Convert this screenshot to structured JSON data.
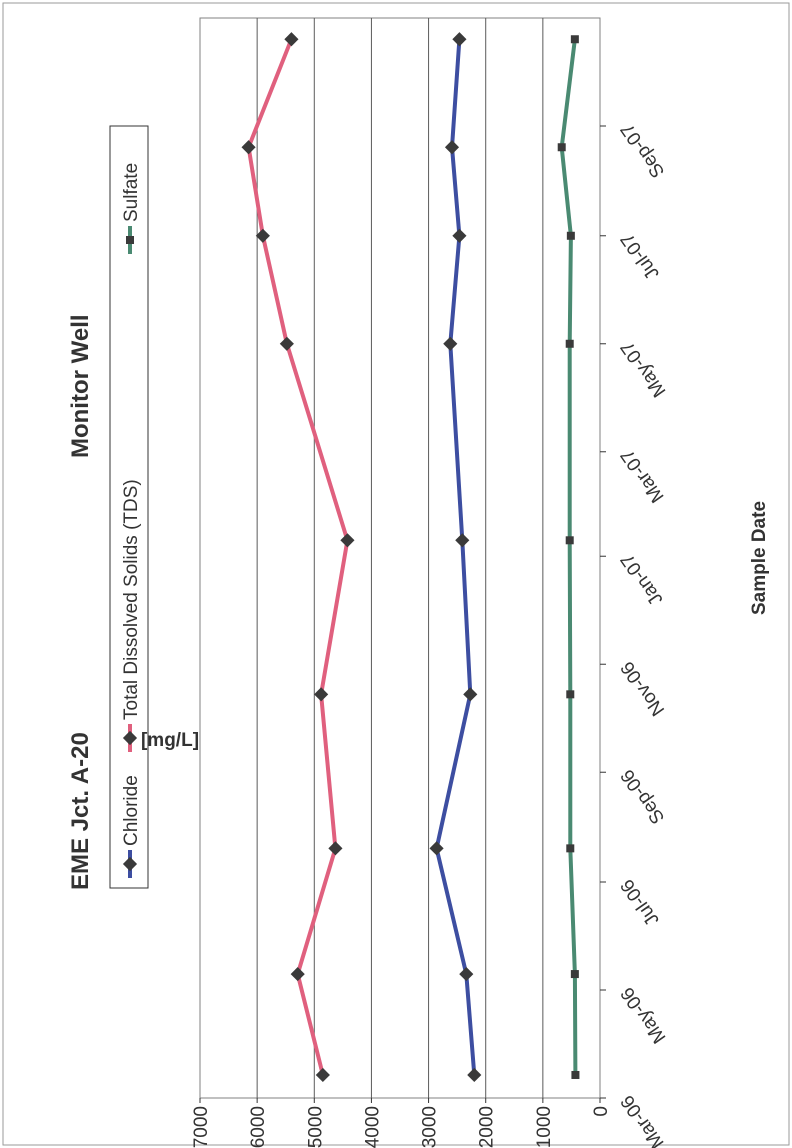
{
  "chart_data": {
    "type": "line",
    "title_left": "EME Jct. A-20",
    "title_right": "Monitor Well",
    "xlabel": "Sample Date",
    "ylabel": "[mg/L]",
    "x_ticks": [
      "Mar-06",
      "May-06",
      "Jul-06",
      "Sep-06",
      "Nov-06",
      "Jan-07",
      "Mar-07",
      "May-07",
      "Jul-07",
      "Sep-07"
    ],
    "x_range": [
      "2006-03-01",
      "2007-11-01"
    ],
    "y_ticks": [
      "0",
      "1000",
      "2000",
      "3000",
      "4000",
      "5000",
      "6000",
      "7000"
    ],
    "ylim": [
      0,
      7000
    ],
    "grid": true,
    "legend_position": "top",
    "dates": [
      "2006-03-14",
      "2006-05-10",
      "2006-07-20",
      "2006-10-15",
      "2007-01-10",
      "2007-05-01",
      "2007-07-01",
      "2007-08-20",
      "2007-10-20"
    ],
    "series": [
      {
        "name": "Chloride",
        "color": "#3d4ea1",
        "marker": "diamond",
        "values": [
          2200,
          2340,
          2860,
          2270,
          2410,
          2620,
          2460,
          2590,
          2460
        ]
      },
      {
        "name": "Total Dissolved Solids (TDS)",
        "color": "#e0607e",
        "marker": "diamond",
        "values": [
          4850,
          5290,
          4630,
          4880,
          4420,
          5480,
          5900,
          6150,
          5400
        ]
      },
      {
        "name": "Sulfate",
        "color": "#4a8a72",
        "marker": "square",
        "values": [
          430,
          440,
          520,
          520,
          530,
          530,
          510,
          670,
          440
        ]
      }
    ]
  }
}
